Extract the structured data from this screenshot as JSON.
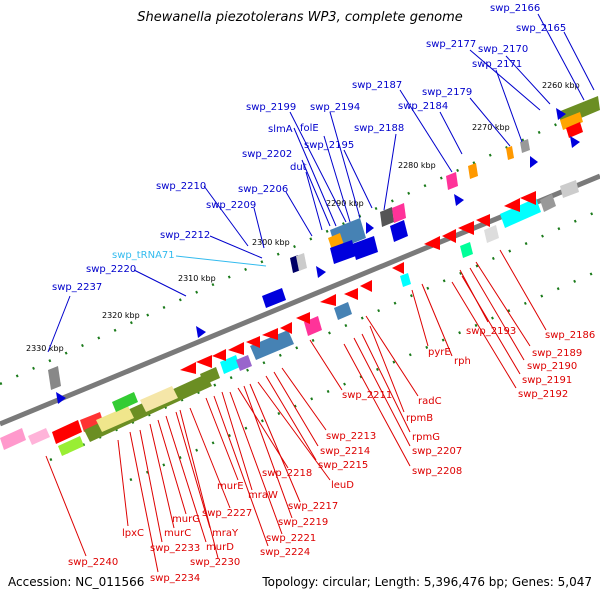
{
  "title": "Shewanella piezotolerans WP3, complete genome",
  "footer": {
    "accession": "Accession: NC_011566",
    "summary": "Topology: circular; Length: 5,396,476 bp; Genes: 5,047"
  },
  "colors": {
    "backbone": "#808080",
    "forward_label": "#0000cc",
    "reverse_label": "#dd0000",
    "rna_label": "#33bbee",
    "tick": "#1a7a1a"
  },
  "scale_ticks": [
    "2260 kbp",
    "2270 kbp",
    "2280 kbp",
    "2290 kbp",
    "2300 kbp",
    "2310 kbp",
    "2320 kbp",
    "2330 kbp"
  ],
  "forward_labels": [
    "swp_2166",
    "swp_2165",
    "swp_2177",
    "swp_2170",
    "swp_2171",
    "swp_2187",
    "swp_2179",
    "swp_2184",
    "swp_2199",
    "swp_2194",
    "slmA",
    "folE",
    "swp_2188",
    "swp_2202",
    "swp_2195",
    "dut",
    "swp_2210",
    "swp_2206",
    "swp_2209",
    "swp_2212",
    "swp_2220",
    "swp_2237"
  ],
  "rna_labels": [
    "swp_tRNA71"
  ],
  "reverse_labels": [
    "swp_2186",
    "swp_2193",
    "swp_2189",
    "swp_2190",
    "swp_2191",
    "swp_2192",
    "pyrE",
    "rph",
    "radC",
    "swp_2211",
    "rpmB",
    "rpmG",
    "swp_2207",
    "swp_2208",
    "swp_2213",
    "swp_2214",
    "swp_2215",
    "swp_2218",
    "leuD",
    "murE",
    "mraW",
    "swp_2217",
    "swp_2227",
    "swp_2219",
    "lpxC",
    "murG",
    "murC",
    "mraY",
    "swp_2221",
    "swp_2233",
    "murD",
    "swp_2224",
    "swp_2230",
    "swp_2240",
    "swp_2234"
  ]
}
